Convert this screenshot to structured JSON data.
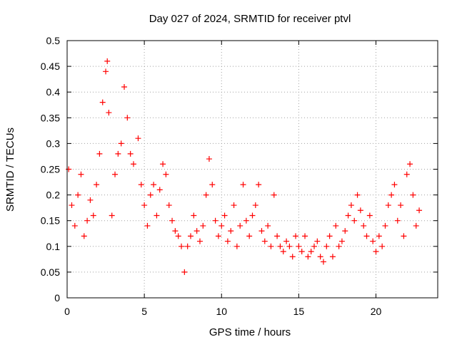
{
  "chart_data": {
    "type": "scatter",
    "title": "Day 027 of 2024, SRMTID for receiver ptvl",
    "xlabel": "GPS time / hours",
    "ylabel": "SRMTID / TECUs",
    "xlim": [
      0,
      24
    ],
    "ylim": [
      0,
      0.5
    ],
    "grid": true,
    "x_ticks": [
      0,
      5,
      10,
      15,
      20
    ],
    "x_tick_labels": [
      "0",
      "5",
      "10",
      "15",
      "20"
    ],
    "y_ticks": [
      0,
      0.05,
      0.1,
      0.15,
      0.2,
      0.25,
      0.3,
      0.35,
      0.4,
      0.45,
      0.5
    ],
    "y_tick_labels": [
      "0",
      "0.05",
      "0.1",
      "0.15",
      "0.2",
      "0.25",
      "0.3",
      "0.35",
      "0.4",
      "0.45",
      "0.5"
    ],
    "marker": "+",
    "color": "#ff0000",
    "series": [
      {
        "name": "SRMTID",
        "x": [
          0.1,
          0.3,
          0.5,
          0.7,
          0.9,
          1.1,
          1.3,
          1.5,
          1.7,
          1.9,
          2.1,
          2.3,
          2.5,
          2.6,
          2.7,
          2.9,
          3.1,
          3.3,
          3.5,
          3.7,
          3.9,
          4.1,
          4.3,
          4.6,
          4.8,
          5.0,
          5.2,
          5.4,
          5.6,
          5.8,
          6.0,
          6.2,
          6.4,
          6.6,
          6.8,
          7.0,
          7.2,
          7.4,
          7.6,
          7.8,
          8.0,
          8.2,
          8.4,
          8.6,
          8.8,
          9.0,
          9.2,
          9.4,
          9.6,
          9.8,
          10.0,
          10.2,
          10.4,
          10.6,
          10.8,
          11.0,
          11.2,
          11.4,
          11.6,
          11.8,
          12.0,
          12.2,
          12.4,
          12.6,
          12.8,
          13.0,
          13.2,
          13.4,
          13.6,
          13.8,
          14.0,
          14.2,
          14.4,
          14.6,
          14.8,
          15.0,
          15.2,
          15.4,
          15.6,
          15.8,
          16.0,
          16.2,
          16.4,
          16.6,
          16.8,
          17.0,
          17.2,
          17.4,
          17.6,
          17.8,
          18.0,
          18.2,
          18.4,
          18.6,
          18.8,
          19.0,
          19.2,
          19.4,
          19.6,
          19.8,
          20.0,
          20.2,
          20.4,
          20.6,
          20.8,
          21.0,
          21.2,
          21.4,
          21.6,
          21.8,
          22.0,
          22.2,
          22.4,
          22.6,
          22.8
        ],
        "y": [
          0.25,
          0.18,
          0.14,
          0.2,
          0.24,
          0.12,
          0.15,
          0.19,
          0.16,
          0.22,
          0.28,
          0.38,
          0.44,
          0.46,
          0.36,
          0.16,
          0.24,
          0.28,
          0.3,
          0.41,
          0.35,
          0.28,
          0.26,
          0.31,
          0.22,
          0.18,
          0.14,
          0.2,
          0.22,
          0.16,
          0.21,
          0.26,
          0.24,
          0.18,
          0.15,
          0.13,
          0.12,
          0.1,
          0.05,
          0.1,
          0.12,
          0.16,
          0.13,
          0.11,
          0.14,
          0.2,
          0.27,
          0.22,
          0.15,
          0.12,
          0.14,
          0.16,
          0.11,
          0.13,
          0.18,
          0.1,
          0.14,
          0.22,
          0.15,
          0.12,
          0.16,
          0.18,
          0.22,
          0.13,
          0.11,
          0.14,
          0.1,
          0.2,
          0.12,
          0.1,
          0.09,
          0.11,
          0.1,
          0.08,
          0.12,
          0.1,
          0.09,
          0.12,
          0.08,
          0.09,
          0.1,
          0.11,
          0.08,
          0.07,
          0.1,
          0.12,
          0.08,
          0.14,
          0.1,
          0.11,
          0.13,
          0.16,
          0.18,
          0.15,
          0.2,
          0.17,
          0.14,
          0.12,
          0.16,
          0.11,
          0.09,
          0.12,
          0.1,
          0.14,
          0.18,
          0.2,
          0.22,
          0.15,
          0.18,
          0.12,
          0.24,
          0.26,
          0.2,
          0.14,
          0.17
        ]
      }
    ]
  }
}
